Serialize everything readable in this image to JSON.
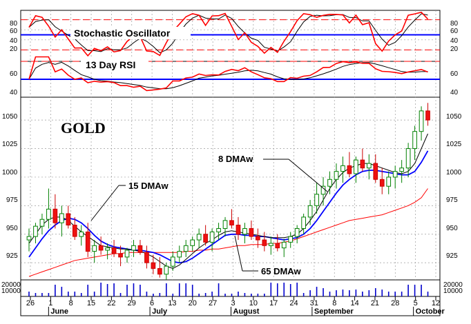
{
  "chart_data": {
    "type": "candlestick",
    "title": "GOLD",
    "panels": {
      "stochastic": {
        "label": "Stochastic Oscillator",
        "ticks": [
          80,
          60,
          40,
          20
        ],
        "reference": 50,
        "bands": [
          80,
          20
        ]
      },
      "rsi": {
        "label": "13 Day RSI",
        "ticks": [
          60,
          40
        ],
        "reference": 50,
        "bands": [
          70
        ]
      },
      "price": {
        "ticks": [
          1050,
          1025,
          1000,
          975,
          950,
          925
        ],
        "ylim": [
          910,
          1070
        ]
      },
      "volume": {
        "ticks": [
          "20000",
          "10000"
        ]
      }
    },
    "x_axis": {
      "day_labels": [
        "26",
        "1",
        "8",
        "15",
        "22",
        "29",
        "6",
        "13",
        "20",
        "27",
        "3",
        "10",
        "17",
        "24",
        "31",
        "8",
        "14",
        "21",
        "28",
        "5",
        "12"
      ],
      "months": [
        "June",
        "July",
        "August",
        "September",
        "October"
      ]
    },
    "annotations": {
      "ma8": "8 DMAw",
      "ma15": "15 DMAw",
      "ma65": "65 DMAw"
    },
    "moving_averages": {
      "ma8": [
        942,
        950,
        958,
        963,
        965,
        965,
        962,
        957,
        952,
        948,
        944,
        940,
        939,
        938,
        937,
        937,
        936,
        935,
        933,
        930,
        926,
        922,
        920,
        923,
        928,
        933,
        938,
        942,
        945,
        949,
        952,
        953,
        952,
        951,
        950,
        949,
        948,
        947,
        947,
        947,
        948,
        950,
        955,
        962,
        970,
        980,
        990,
        998,
        1004,
        1008,
        1010,
        1012,
        1012,
        1010,
        1008,
        1006,
        1004,
        1003,
        1005,
        1012,
        1025,
        1038
      ],
      "ma15": [
        930,
        938,
        946,
        953,
        958,
        962,
        964,
        963,
        960,
        955,
        949,
        944,
        941,
        939,
        938,
        937,
        936,
        936,
        935,
        934,
        932,
        929,
        926,
        925,
        926,
        929,
        933,
        937,
        941,
        945,
        949,
        950,
        950,
        949,
        949,
        948,
        948,
        947,
        946,
        945,
        946,
        947,
        950,
        955,
        962,
        970,
        978,
        986,
        993,
        998,
        1002,
        1005,
        1006,
        1006,
        1005,
        1004,
        1003,
        1002,
        1002,
        1005,
        1013,
        1023
      ],
      "ma65": [
        913,
        915,
        917,
        919,
        921,
        923,
        925,
        927,
        928,
        929,
        930,
        931,
        932,
        933,
        933,
        934,
        934,
        934,
        934,
        934,
        934,
        934,
        934,
        934,
        935,
        935,
        936,
        936,
        937,
        937,
        938,
        939,
        940,
        940,
        941,
        941,
        941,
        942,
        942,
        943,
        944,
        946,
        948,
        950,
        952,
        954,
        956,
        958,
        960,
        962,
        963,
        964,
        965,
        966,
        967,
        969,
        971,
        973,
        975,
        978,
        982,
        990
      ],
      "colors": {
        "ma8": "#000000",
        "ma15": "#0000ff",
        "ma65": "#ff0000"
      }
    },
    "candles": [
      [
        945,
        955,
        935,
        948
      ],
      [
        948,
        960,
        942,
        957
      ],
      [
        957,
        968,
        950,
        963
      ],
      [
        963,
        990,
        955,
        972
      ],
      [
        972,
        985,
        955,
        960
      ],
      [
        960,
        975,
        948,
        968
      ],
      [
        968,
        975,
        955,
        958
      ],
      [
        958,
        965,
        945,
        948
      ],
      [
        948,
        958,
        940,
        952
      ],
      [
        952,
        960,
        930,
        935
      ],
      [
        935,
        945,
        925,
        940
      ],
      [
        940,
        948,
        932,
        936
      ],
      [
        936,
        942,
        928,
        938
      ],
      [
        938,
        945,
        930,
        933
      ],
      [
        933,
        940,
        922,
        930
      ],
      [
        930,
        938,
        925,
        936
      ],
      [
        936,
        945,
        930,
        940
      ],
      [
        940,
        945,
        932,
        934
      ],
      [
        934,
        940,
        920,
        925
      ],
      [
        925,
        932,
        915,
        920
      ],
      [
        920,
        930,
        912,
        915
      ],
      [
        915,
        925,
        910,
        922
      ],
      [
        922,
        935,
        918,
        930
      ],
      [
        930,
        940,
        925,
        935
      ],
      [
        935,
        945,
        930,
        940
      ],
      [
        940,
        948,
        935,
        945
      ],
      [
        945,
        955,
        938,
        950
      ],
      [
        950,
        958,
        940,
        943
      ],
      [
        943,
        955,
        935,
        952
      ],
      [
        952,
        960,
        945,
        955
      ],
      [
        955,
        965,
        948,
        962
      ],
      [
        962,
        972,
        955,
        958
      ],
      [
        958,
        965,
        945,
        950
      ],
      [
        950,
        960,
        942,
        955
      ],
      [
        955,
        962,
        945,
        948
      ],
      [
        948,
        955,
        938,
        945
      ],
      [
        945,
        952,
        935,
        940
      ],
      [
        940,
        948,
        932,
        942
      ],
      [
        942,
        950,
        935,
        938
      ],
      [
        938,
        946,
        930,
        943
      ],
      [
        943,
        952,
        938,
        948
      ],
      [
        948,
        958,
        942,
        955
      ],
      [
        955,
        968,
        950,
        965
      ],
      [
        965,
        980,
        958,
        975
      ],
      [
        975,
        995,
        968,
        985
      ],
      [
        985,
        1000,
        975,
        992
      ],
      [
        992,
        1005,
        985,
        998
      ],
      [
        998,
        1012,
        990,
        1005
      ],
      [
        1005,
        1018,
        995,
        1010
      ],
      [
        1010,
        1022,
        1000,
        1003
      ],
      [
        1003,
        1018,
        995,
        1015
      ],
      [
        1015,
        1025,
        1005,
        1008
      ],
      [
        1008,
        1020,
        998,
        1012
      ],
      [
        1012,
        1020,
        995,
        998
      ],
      [
        998,
        1008,
        985,
        992
      ],
      [
        992,
        1005,
        985,
        1000
      ],
      [
        1000,
        1010,
        990,
        1005
      ],
      [
        1005,
        1015,
        995,
        1008
      ],
      [
        1008,
        1030,
        1000,
        1025
      ],
      [
        1025,
        1045,
        1015,
        1040
      ],
      [
        1040,
        1062,
        1032,
        1058
      ],
      [
        1058,
        1065,
        1045,
        1050
      ]
    ]
  }
}
